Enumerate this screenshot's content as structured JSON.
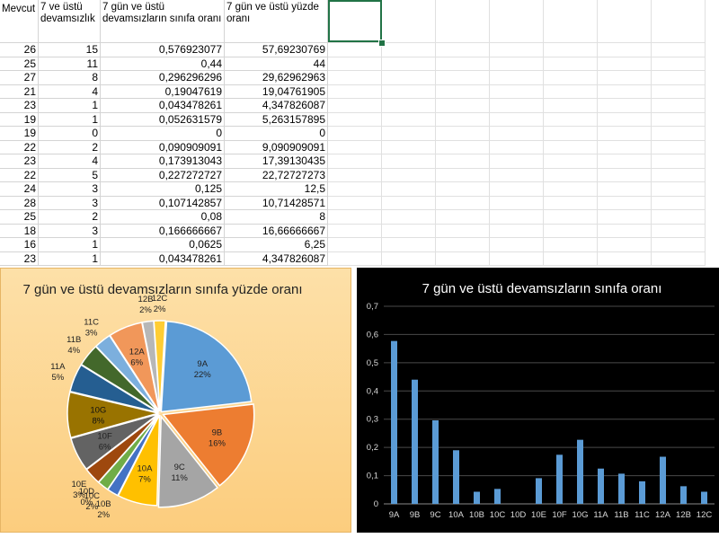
{
  "sheet": {
    "headers": [
      "Mevcut",
      "7 ve üstü devamsızlık",
      "7 gün ve üstü devamsızların sınıfa oranı",
      "7 gün ve üstü yüzde oranı"
    ],
    "rows": [
      [
        "26",
        "15",
        "0,576923077",
        "57,69230769"
      ],
      [
        "25",
        "11",
        "0,44",
        "44"
      ],
      [
        "27",
        "8",
        "0,296296296",
        "29,62962963"
      ],
      [
        "21",
        "4",
        "0,19047619",
        "19,04761905"
      ],
      [
        "23",
        "1",
        "0,043478261",
        "4,347826087"
      ],
      [
        "19",
        "1",
        "0,052631579",
        "5,263157895"
      ],
      [
        "19",
        "0",
        "0",
        "0"
      ],
      [
        "22",
        "2",
        "0,090909091",
        "9,090909091"
      ],
      [
        "23",
        "4",
        "0,173913043",
        "17,39130435"
      ],
      [
        "22",
        "5",
        "0,227272727",
        "22,72727273"
      ],
      [
        "24",
        "3",
        "0,125",
        "12,5"
      ],
      [
        "28",
        "3",
        "0,107142857",
        "10,71428571"
      ],
      [
        "25",
        "2",
        "0,08",
        "8"
      ],
      [
        "18",
        "3",
        "0,166666667",
        "16,66666667"
      ],
      [
        "16",
        "1",
        "0,0625",
        "6,25"
      ],
      [
        "23",
        "1",
        "0,043478261",
        "4,347826087"
      ]
    ]
  },
  "chart_data": [
    {
      "type": "pie",
      "title": "7 gün ve üstü devamsızların sınıfa yüzde oranı",
      "categories": [
        "9A",
        "9B",
        "9C",
        "10A",
        "10B",
        "10C",
        "10D",
        "10E",
        "10F",
        "10G",
        "11A",
        "11B",
        "11C",
        "12A",
        "12B",
        "12C"
      ],
      "values": [
        22,
        16,
        11,
        7,
        2,
        2,
        0,
        3,
        6,
        8,
        5,
        4,
        3,
        6,
        2,
        2
      ],
      "value_labels": [
        "22%",
        "16%",
        "11%",
        "7%",
        "2%",
        "2%",
        "0%",
        "3%",
        "6%",
        "8%",
        "5%",
        "4%",
        "3%",
        "6%",
        "2%",
        "2%"
      ],
      "colors": [
        "#5b9bd5",
        "#ed7d31",
        "#a5a5a5",
        "#ffc000",
        "#4472c4",
        "#70ad47",
        "#264478",
        "#9e480e",
        "#636363",
        "#997300",
        "#255e91",
        "#43682b",
        "#7cafdd",
        "#f1975a",
        "#b7b7b7",
        "#ffcd33"
      ]
    },
    {
      "type": "bar",
      "title": "7 gün ve üstü devamsızların sınıfa oranı",
      "categories": [
        "9A",
        "9B",
        "9C",
        "10A",
        "10B",
        "10C",
        "10D",
        "10E",
        "10F",
        "10G",
        "11A",
        "11B",
        "11C",
        "12A",
        "12B",
        "12C"
      ],
      "values": [
        0.577,
        0.44,
        0.296,
        0.19,
        0.043,
        0.053,
        0,
        0.091,
        0.174,
        0.227,
        0.125,
        0.107,
        0.08,
        0.167,
        0.0625,
        0.043
      ],
      "ylim": [
        0,
        0.7
      ],
      "yticks": [
        "0",
        "0,1",
        "0,2",
        "0,3",
        "0,4",
        "0,5",
        "0,6",
        "0,7"
      ],
      "grid": true,
      "bar_color": "#5b9bd5",
      "background": "#000000"
    }
  ]
}
